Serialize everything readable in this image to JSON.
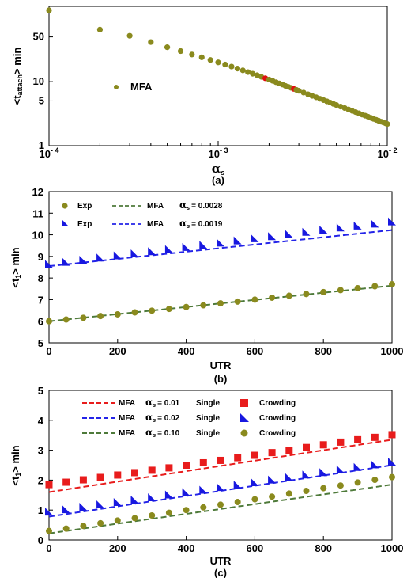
{
  "chart_data": [
    {
      "type": "scatter",
      "panel_label": "(a)",
      "xlabel": "α",
      "xlabel_sub": "s",
      "ylabel": "<t",
      "ylabel_sub": "attach",
      "ylabel_suffix": "> min",
      "xscale": "log",
      "yscale": "log",
      "xlim": [
        0.0001,
        0.01
      ],
      "ylim": [
        1,
        150
      ],
      "x_ticks": [
        {
          "value": 0.0001,
          "base": "10",
          "exp": "- 4"
        },
        {
          "value": 0.001,
          "base": "10",
          "exp": "- 3"
        },
        {
          "value": 0.01,
          "base": "10",
          "exp": "- 2"
        }
      ],
      "y_ticks": [
        {
          "value": 1,
          "label": "1"
        },
        {
          "value": 5,
          "label": "5"
        },
        {
          "value": 10,
          "label": "10"
        },
        {
          "value": 50,
          "label": "50"
        }
      ],
      "legend": {
        "label": "MFA",
        "placement": "center-left"
      },
      "marker_color": "#8a8a1e",
      "highlight_color": "#e01010",
      "series": [
        {
          "name": "MFA",
          "x": [
            0.0001,
            0.0002,
            0.0003,
            0.0004,
            0.0005,
            0.0006,
            0.0007,
            0.0008,
            0.0009,
            0.001,
            0.0011,
            0.0012,
            0.0013,
            0.0014,
            0.0015,
            0.0016,
            0.0017,
            0.0018,
            0.0019,
            0.002,
            0.0021,
            0.0022,
            0.0023,
            0.0024,
            0.0025,
            0.0026,
            0.0027,
            0.0028,
            0.0029,
            0.003,
            0.0032,
            0.0034,
            0.0036,
            0.0038,
            0.004,
            0.0042,
            0.0044,
            0.0046,
            0.0048,
            0.005,
            0.0053,
            0.0056,
            0.0059,
            0.0062,
            0.0065,
            0.0068,
            0.0071,
            0.0074,
            0.0077,
            0.008,
            0.0083,
            0.0086,
            0.0089,
            0.0092,
            0.0095,
            0.0098,
            0.01
          ],
          "y": [
            130,
            65,
            52,
            41.5,
            34.5,
            30,
            26.5,
            24,
            21.8,
            20,
            18.5,
            17.2,
            16,
            15,
            14.1,
            13.3,
            12.6,
            11.9,
            11.3,
            10.8,
            10.3,
            9.8,
            9.4,
            9,
            8.6,
            8.3,
            8,
            7.7,
            7.45,
            7.2,
            6.75,
            6.35,
            6,
            5.7,
            5.4,
            5.15,
            4.92,
            4.7,
            4.5,
            4.32,
            4.08,
            3.87,
            3.68,
            3.5,
            3.34,
            3.2,
            3.06,
            2.94,
            2.83,
            2.72,
            2.62,
            2.53,
            2.45,
            2.37,
            2.3,
            2.23,
            2.18
          ],
          "highlighted_x": [
            0.0019,
            0.0028
          ]
        }
      ]
    },
    {
      "type": "scatter",
      "panel_label": "(b)",
      "xlabel": "UTR",
      "ylabel": "<t",
      "ylabel_sub": "1",
      "ylabel_suffix": "> min",
      "xlim": [
        0,
        1000
      ],
      "ylim": [
        5,
        12
      ],
      "x_ticks": [
        0,
        200,
        400,
        600,
        800,
        1000
      ],
      "y_ticks": [
        5,
        6,
        7,
        8,
        9,
        10,
        11,
        12
      ],
      "legend": {
        "placement": "top-left",
        "rows": [
          {
            "exp_label": "Exp",
            "mfa_label": "MFA",
            "alpha": "α",
            "alpha_sub": "s",
            "alpha_value": "= 0.0028"
          },
          {
            "exp_label": "Exp",
            "mfa_label": "MFA",
            "alpha": "α",
            "alpha_sub": "s",
            "alpha_value": "= 0.0019"
          }
        ]
      },
      "series": [
        {
          "name": "Exp",
          "marker": "circle",
          "color": "#8a8a1e",
          "x": [
            0,
            50,
            100,
            150,
            200,
            250,
            300,
            350,
            400,
            450,
            500,
            550,
            600,
            650,
            700,
            750,
            800,
            850,
            900,
            950,
            1000
          ],
          "y": [
            6.0,
            6.08,
            6.16,
            6.24,
            6.32,
            6.41,
            6.49,
            6.57,
            6.66,
            6.74,
            6.83,
            6.91,
            7.0,
            7.09,
            7.18,
            7.26,
            7.35,
            7.44,
            7.53,
            7.62,
            7.71
          ]
        },
        {
          "name": "MFA",
          "marker": "dashed-line",
          "color": "#4e7a3a",
          "x": [
            0,
            1000
          ],
          "y": [
            6.0,
            7.65
          ]
        },
        {
          "name": "Exp",
          "marker": "triangle",
          "color": "#1818e0",
          "x": [
            0,
            50,
            100,
            150,
            200,
            250,
            300,
            350,
            400,
            450,
            500,
            550,
            600,
            650,
            700,
            750,
            800,
            850,
            900,
            950,
            1000
          ],
          "y": [
            8.65,
            8.75,
            8.85,
            8.95,
            9.05,
            9.14,
            9.24,
            9.34,
            9.44,
            9.54,
            9.64,
            9.74,
            9.84,
            9.94,
            10.04,
            10.14,
            10.24,
            10.34,
            10.43,
            10.52,
            10.62
          ]
        },
        {
          "name": "MFA",
          "marker": "dashed-line",
          "color": "#2424e8",
          "x": [
            0,
            1000
          ],
          "y": [
            8.55,
            10.22
          ]
        }
      ]
    },
    {
      "type": "scatter",
      "panel_label": "(c)",
      "xlabel": "UTR",
      "ylabel": "<t",
      "ylabel_sub": "1",
      "ylabel_suffix": "> min",
      "xlim": [
        0,
        1000
      ],
      "ylim": [
        0,
        5
      ],
      "x_ticks": [
        0,
        200,
        400,
        600,
        800,
        1000
      ],
      "y_ticks": [
        0,
        1,
        2,
        3,
        4,
        5
      ],
      "legend": {
        "placement": "top-left",
        "rows": [
          {
            "mfa_label": "MFA",
            "alpha": "α",
            "alpha_sub": "s",
            "alpha_value": "= 0.01",
            "single_label": "Single",
            "crowding_label": "Crowding"
          },
          {
            "mfa_label": "MFA",
            "alpha": "α",
            "alpha_sub": "s",
            "alpha_value": "= 0.02",
            "single_label": "Single",
            "crowding_label": "Crowding"
          },
          {
            "mfa_label": "MFA",
            "alpha": "α",
            "alpha_sub": "s",
            "alpha_value": "= 0.10",
            "single_label": "Single",
            "crowding_label": "Crowding"
          }
        ]
      },
      "series": [
        {
          "name": "MFA",
          "marker": "dashed-line",
          "color": "#e81c1c",
          "x": [
            0,
            1000
          ],
          "y": [
            1.6,
            3.35
          ]
        },
        {
          "name": "Crowding",
          "marker": "square",
          "color": "#e81c1c",
          "x": [
            0,
            50,
            100,
            150,
            200,
            250,
            300,
            350,
            400,
            450,
            500,
            550,
            600,
            650,
            700,
            750,
            800,
            850,
            900,
            950,
            1000
          ],
          "y": [
            1.85,
            1.93,
            2.01,
            2.09,
            2.17,
            2.25,
            2.33,
            2.41,
            2.5,
            2.58,
            2.66,
            2.75,
            2.83,
            2.92,
            3.0,
            3.09,
            3.18,
            3.27,
            3.35,
            3.43,
            3.52
          ]
        },
        {
          "name": "MFA",
          "marker": "dashed-line",
          "color": "#2424e8",
          "x": [
            0,
            1000
          ],
          "y": [
            0.78,
            2.5
          ]
        },
        {
          "name": "Crowding",
          "marker": "triangle",
          "color": "#1818e0",
          "x": [
            0,
            50,
            100,
            150,
            200,
            250,
            300,
            350,
            400,
            450,
            500,
            550,
            600,
            650,
            700,
            750,
            800,
            850,
            900,
            950,
            1000
          ],
          "y": [
            0.95,
            1.03,
            1.11,
            1.19,
            1.27,
            1.35,
            1.43,
            1.52,
            1.6,
            1.68,
            1.77,
            1.85,
            1.93,
            2.02,
            2.1,
            2.19,
            2.27,
            2.36,
            2.44,
            2.53,
            2.62
          ]
        },
        {
          "name": "MFA",
          "marker": "dashed-line",
          "color": "#4e7a3a",
          "x": [
            0,
            1000
          ],
          "y": [
            0.22,
            1.85
          ]
        },
        {
          "name": "Crowding",
          "marker": "circle",
          "color": "#8a8a1e",
          "x": [
            0,
            50,
            100,
            150,
            200,
            250,
            300,
            350,
            400,
            450,
            500,
            550,
            600,
            650,
            700,
            750,
            800,
            850,
            900,
            950,
            1000
          ],
          "y": [
            0.3,
            0.38,
            0.47,
            0.56,
            0.65,
            0.73,
            0.82,
            0.91,
            1.0,
            1.09,
            1.18,
            1.27,
            1.36,
            1.45,
            1.55,
            1.64,
            1.73,
            1.82,
            1.92,
            2.01,
            2.1
          ]
        }
      ]
    }
  ]
}
